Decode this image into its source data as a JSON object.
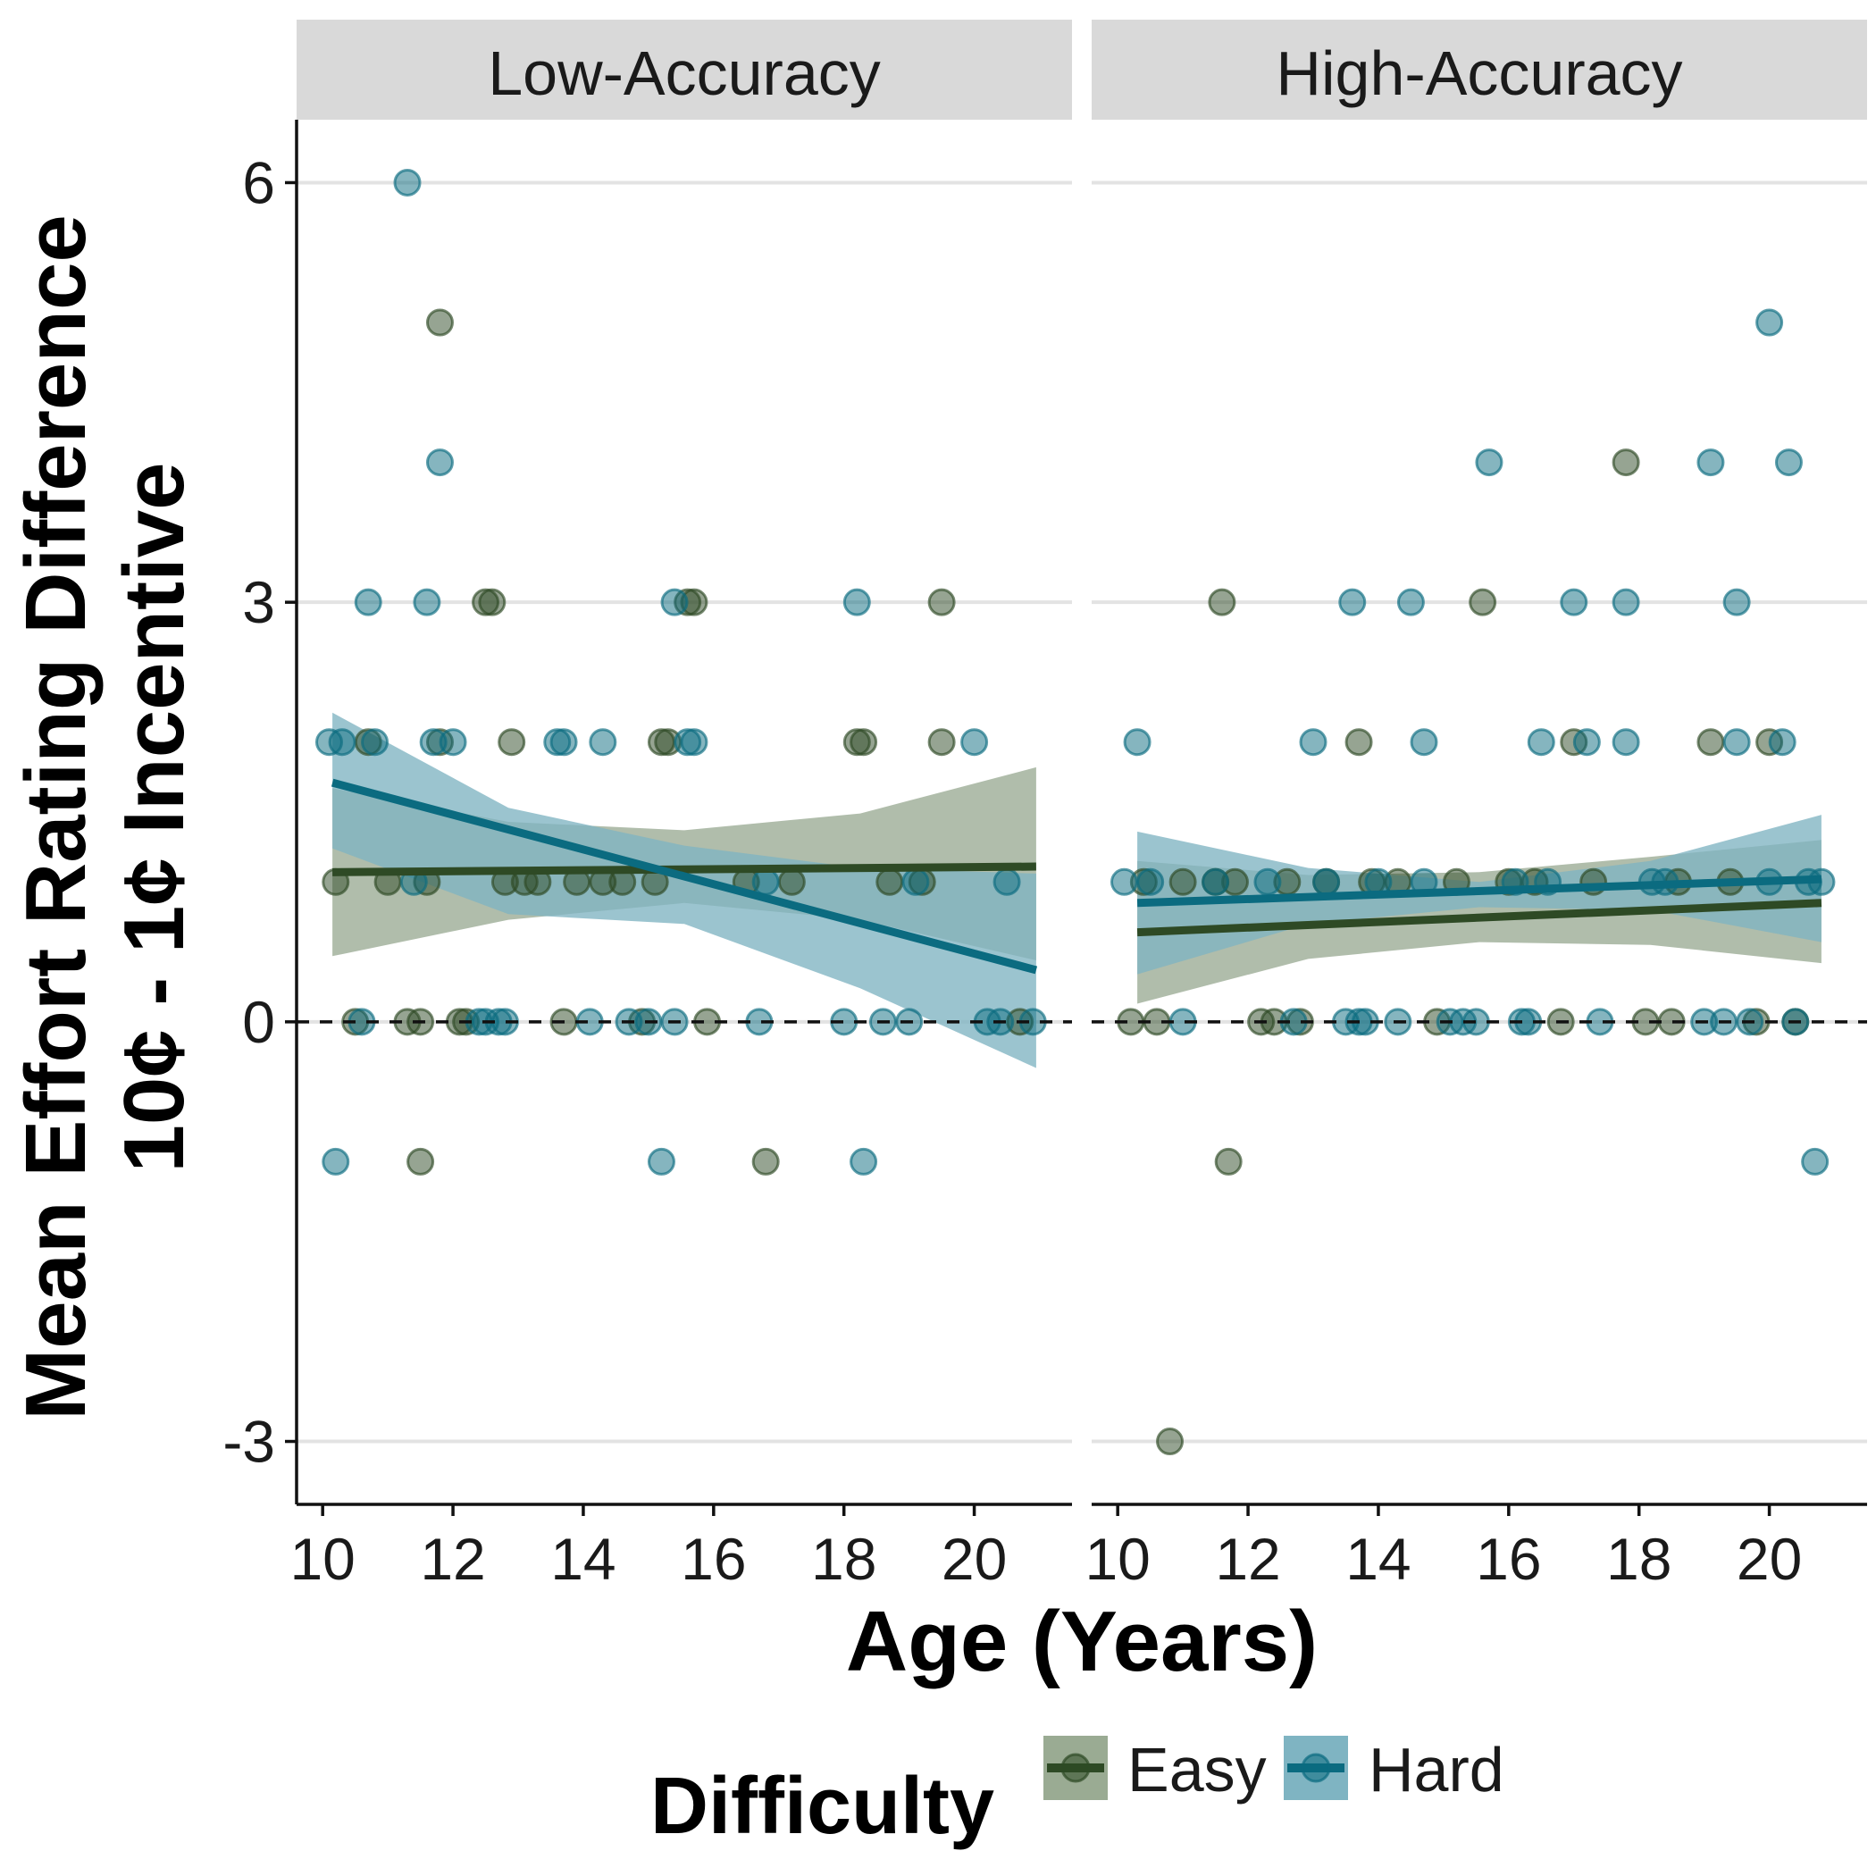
{
  "chart_data": {
    "type": "scatter",
    "facets": [
      "Low-Accuracy",
      "High-Accuracy"
    ],
    "xlabel": "Age (Years)",
    "ylabel_line1": "Mean Effort Rating Difference",
    "ylabel_line2": "10¢ - 1¢ Incentive",
    "xlim": [
      9.6,
      21.5
    ],
    "ylim": [
      -3.45,
      6.45
    ],
    "x_ticks": [
      10,
      12,
      14,
      16,
      18,
      20
    ],
    "y_ticks": [
      -3,
      0,
      3,
      6
    ],
    "y_tick_labels": [
      "-3",
      "0",
      "3",
      "6"
    ],
    "reference_line_y": 0,
    "legend": {
      "title": "Difficulty",
      "position": "bottom",
      "entries": [
        "Easy",
        "Hard"
      ]
    },
    "colors": {
      "Easy": "#2e4a25",
      "Hard": "#0b6b80",
      "Easy_band": "#9aab93",
      "Hard_band": "#7fb4c2",
      "strip_bg": "#d9d9d9"
    },
    "series": [
      {
        "name": "Easy",
        "points": {
          "Low-Accuracy": [
            [
              10.2,
              1
            ],
            [
              10.5,
              0
            ],
            [
              10.7,
              2
            ],
            [
              11.0,
              1
            ],
            [
              11.3,
              0
            ],
            [
              11.5,
              0
            ],
            [
              11.5,
              -1
            ],
            [
              11.6,
              1
            ],
            [
              11.8,
              5
            ],
            [
              11.8,
              2
            ],
            [
              12.1,
              0
            ],
            [
              12.2,
              0
            ],
            [
              12.5,
              3
            ],
            [
              12.6,
              3
            ],
            [
              12.8,
              1
            ],
            [
              12.9,
              2
            ],
            [
              13.1,
              1
            ],
            [
              13.3,
              1
            ],
            [
              13.7,
              0
            ],
            [
              13.9,
              1
            ],
            [
              14.3,
              1
            ],
            [
              14.6,
              1
            ],
            [
              14.9,
              0
            ],
            [
              15.1,
              1
            ],
            [
              15.2,
              2
            ],
            [
              15.3,
              2
            ],
            [
              15.6,
              3
            ],
            [
              15.7,
              3
            ],
            [
              15.9,
              0
            ],
            [
              16.5,
              1
            ],
            [
              16.8,
              -1
            ],
            [
              17.2,
              1
            ],
            [
              18.2,
              2
            ],
            [
              18.3,
              2
            ],
            [
              18.7,
              1
            ],
            [
              19.2,
              1
            ],
            [
              19.5,
              3
            ],
            [
              19.5,
              2
            ],
            [
              20.7,
              0
            ]
          ],
          "High-Accuracy": [
            [
              10.2,
              0
            ],
            [
              10.4,
              1
            ],
            [
              10.6,
              0
            ],
            [
              10.8,
              -3
            ],
            [
              11.0,
              1
            ],
            [
              11.5,
              1
            ],
            [
              11.6,
              3
            ],
            [
              11.7,
              -1
            ],
            [
              11.8,
              1
            ],
            [
              12.2,
              0
            ],
            [
              12.4,
              0
            ],
            [
              12.6,
              1
            ],
            [
              12.8,
              0
            ],
            [
              13.2,
              1
            ],
            [
              13.7,
              2
            ],
            [
              13.9,
              1
            ],
            [
              14.3,
              1
            ],
            [
              14.9,
              0
            ],
            [
              15.2,
              1
            ],
            [
              15.6,
              3
            ],
            [
              16.0,
              1
            ],
            [
              16.4,
              1
            ],
            [
              16.8,
              0
            ],
            [
              17.0,
              2
            ],
            [
              17.3,
              1
            ],
            [
              17.8,
              4
            ],
            [
              18.1,
              0
            ],
            [
              18.5,
              0
            ],
            [
              18.6,
              1
            ],
            [
              19.1,
              2
            ],
            [
              19.4,
              1
            ],
            [
              19.8,
              0
            ],
            [
              20.0,
              2
            ],
            [
              20.4,
              0
            ]
          ]
        },
        "trend": {
          "Low-Accuracy": {
            "x": [
              10.15,
              20.95
            ],
            "y": [
              1.07,
              1.11
            ],
            "band_lower": [
              0.47,
              0.73,
              0.85,
              0.73,
              0.44
            ],
            "band_upper": [
              1.67,
              1.43,
              1.37,
              1.49,
              1.82
            ]
          },
          "High-Accuracy": {
            "x": [
              10.3,
              20.8
            ],
            "y": [
              0.64,
              0.85
            ],
            "band_lower": [
              0.13,
              0.45,
              0.57,
              0.55,
              0.42
            ],
            "band_upper": [
              1.15,
              1.05,
              1.07,
              1.18,
              1.3
            ]
          }
        }
      },
      {
        "name": "Hard",
        "points": {
          "Low-Accuracy": [
            [
              10.1,
              2
            ],
            [
              10.2,
              -1
            ],
            [
              10.3,
              2
            ],
            [
              10.6,
              0
            ],
            [
              10.7,
              3
            ],
            [
              10.8,
              2
            ],
            [
              11.3,
              6
            ],
            [
              11.4,
              1
            ],
            [
              11.6,
              3
            ],
            [
              11.7,
              2
            ],
            [
              11.8,
              4
            ],
            [
              12.0,
              2
            ],
            [
              12.4,
              0
            ],
            [
              12.5,
              0
            ],
            [
              12.7,
              0
            ],
            [
              12.8,
              0
            ],
            [
              13.6,
              2
            ],
            [
              13.7,
              2
            ],
            [
              14.1,
              0
            ],
            [
              14.3,
              2
            ],
            [
              14.7,
              0
            ],
            [
              15.0,
              0
            ],
            [
              15.2,
              -1
            ],
            [
              15.4,
              0
            ],
            [
              15.4,
              3
            ],
            [
              15.6,
              2
            ],
            [
              15.7,
              2
            ],
            [
              16.7,
              0
            ],
            [
              16.8,
              1
            ],
            [
              18.0,
              0
            ],
            [
              18.2,
              3
            ],
            [
              18.3,
              -1
            ],
            [
              18.6,
              0
            ],
            [
              19.0,
              0
            ],
            [
              19.1,
              1
            ],
            [
              20.0,
              2
            ],
            [
              20.2,
              0
            ],
            [
              20.4,
              0
            ],
            [
              20.5,
              1
            ],
            [
              20.9,
              0
            ]
          ],
          "High-Accuracy": [
            [
              10.1,
              1
            ],
            [
              10.3,
              2
            ],
            [
              10.5,
              1
            ],
            [
              11.0,
              0
            ],
            [
              11.5,
              1
            ],
            [
              12.3,
              1
            ],
            [
              12.7,
              0
            ],
            [
              13.0,
              2
            ],
            [
              13.2,
              1
            ],
            [
              13.5,
              0
            ],
            [
              13.6,
              3
            ],
            [
              13.7,
              0
            ],
            [
              13.8,
              0
            ],
            [
              14.0,
              1
            ],
            [
              14.3,
              0
            ],
            [
              14.5,
              3
            ],
            [
              14.7,
              2
            ],
            [
              14.7,
              1
            ],
            [
              15.1,
              0
            ],
            [
              15.3,
              0
            ],
            [
              15.5,
              0
            ],
            [
              15.7,
              4
            ],
            [
              16.1,
              1
            ],
            [
              16.2,
              0
            ],
            [
              16.3,
              0
            ],
            [
              16.5,
              2
            ],
            [
              16.6,
              1
            ],
            [
              17.0,
              3
            ],
            [
              17.2,
              2
            ],
            [
              17.4,
              0
            ],
            [
              17.8,
              3
            ],
            [
              17.8,
              2
            ],
            [
              18.2,
              1
            ],
            [
              18.4,
              1
            ],
            [
              19.0,
              0
            ],
            [
              19.1,
              4
            ],
            [
              19.3,
              0
            ],
            [
              19.5,
              3
            ],
            [
              19.5,
              2
            ],
            [
              19.7,
              0
            ],
            [
              20.0,
              5
            ],
            [
              20.0,
              1
            ],
            [
              20.2,
              2
            ],
            [
              20.3,
              4
            ],
            [
              20.4,
              0
            ],
            [
              20.6,
              1
            ],
            [
              20.7,
              -1
            ],
            [
              20.8,
              1
            ]
          ]
        },
        "trend": {
          "Low-Accuracy": {
            "x": [
              10.15,
              20.95
            ],
            "y": [
              1.71,
              0.37
            ],
            "band_lower": [
              1.24,
              0.77,
              0.7,
              0.24,
              -0.33
            ],
            "band_upper": [
              2.21,
              1.53,
              1.26,
              1.1,
              1.06
            ]
          },
          "High-Accuracy": {
            "x": [
              10.3,
              20.8
            ],
            "y": [
              0.85,
              1.02
            ],
            "band_lower": [
              0.34,
              0.7,
              0.82,
              0.8,
              0.57
            ],
            "band_upper": [
              1.36,
              1.1,
              1.0,
              1.15,
              1.48
            ]
          }
        }
      }
    ]
  }
}
